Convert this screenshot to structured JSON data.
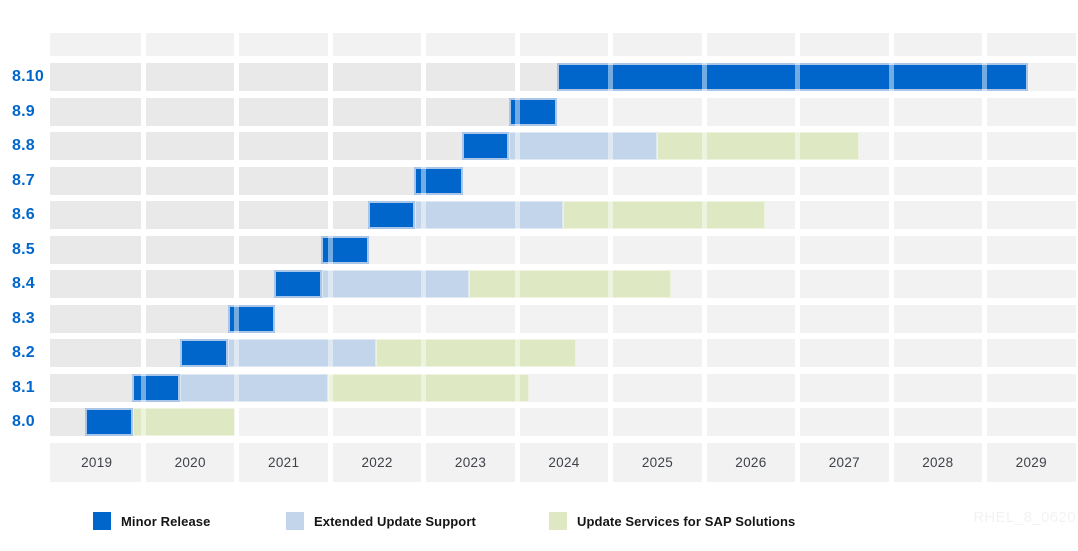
{
  "watermark": "RHEL_8_0620",
  "colors": {
    "minor_release": "#0066cc",
    "minor_release_border": "#a9c6e8",
    "extended_update_support": "#c3d5ea",
    "update_services_sap": "#dee9c4",
    "row_past_bg": "#e9e9e9",
    "row_future_bg": "#f2f2f2",
    "band_bg": "#f2f2f2",
    "version_label": "#0066cc",
    "axis_label": "#3e4349",
    "legend_text": "#151515",
    "watermark": "#f2f3f3"
  },
  "legend": {
    "items": [
      {
        "label": "Minor Release",
        "color_key": "minor_release"
      },
      {
        "label": "Extended Update Support",
        "color_key": "extended_update_support"
      },
      {
        "label": "Update Services for SAP Solutions",
        "color_key": "update_services_sap"
      }
    ]
  },
  "chart_data": {
    "type": "gantt",
    "title": "",
    "xlabel": "",
    "ylabel": "",
    "x_domain": [
      2019,
      2030
    ],
    "x_ticks": [
      "2019",
      "2020",
      "2021",
      "2022",
      "2023",
      "2024",
      "2025",
      "2026",
      "2027",
      "2028",
      "2029"
    ],
    "grid": "white vertical gaps at year boundaries",
    "legend_position": "bottom",
    "series_types": {
      "minor": "Minor Release",
      "eus": "Extended Update Support",
      "sap": "Update Services for SAP Solutions"
    },
    "rows": [
      {
        "label": "8.10",
        "segments": [
          {
            "type": "minor",
            "start": 2024.42,
            "end": 2029.47
          }
        ]
      },
      {
        "label": "8.9",
        "segments": [
          {
            "type": "minor",
            "start": 2023.91,
            "end": 2024.42
          }
        ]
      },
      {
        "label": "8.8",
        "segments": [
          {
            "type": "minor",
            "start": 2023.41,
            "end": 2023.91
          },
          {
            "type": "eus",
            "start": 2023.91,
            "end": 2025.5
          },
          {
            "type": "sap",
            "start": 2025.5,
            "end": 2027.66
          }
        ]
      },
      {
        "label": "8.7",
        "segments": [
          {
            "type": "minor",
            "start": 2022.9,
            "end": 2023.42
          }
        ]
      },
      {
        "label": "8.6",
        "segments": [
          {
            "type": "minor",
            "start": 2022.4,
            "end": 2022.91
          },
          {
            "type": "eus",
            "start": 2022.91,
            "end": 2024.49
          },
          {
            "type": "sap",
            "start": 2024.49,
            "end": 2026.65
          }
        ]
      },
      {
        "label": "8.5",
        "segments": [
          {
            "type": "minor",
            "start": 2021.9,
            "end": 2022.41
          }
        ]
      },
      {
        "label": "8.4",
        "segments": [
          {
            "type": "minor",
            "start": 2021.4,
            "end": 2021.91
          },
          {
            "type": "eus",
            "start": 2021.91,
            "end": 2023.48
          },
          {
            "type": "sap",
            "start": 2023.48,
            "end": 2025.64
          }
        ]
      },
      {
        "label": "8.3",
        "segments": [
          {
            "type": "minor",
            "start": 2020.9,
            "end": 2021.41
          }
        ]
      },
      {
        "label": "8.2",
        "segments": [
          {
            "type": "minor",
            "start": 2020.39,
            "end": 2020.9
          },
          {
            "type": "eus",
            "start": 2020.9,
            "end": 2022.49
          },
          {
            "type": "sap",
            "start": 2022.49,
            "end": 2024.63
          }
        ]
      },
      {
        "label": "8.1",
        "segments": [
          {
            "type": "minor",
            "start": 2019.88,
            "end": 2020.39
          },
          {
            "type": "eus",
            "start": 2020.39,
            "end": 2021.98
          },
          {
            "type": "sap",
            "start": 2021.98,
            "end": 2024.13
          }
        ]
      },
      {
        "label": "8.0",
        "segments": [
          {
            "type": "minor",
            "start": 2019.37,
            "end": 2019.89
          },
          {
            "type": "sap",
            "start": 2019.89,
            "end": 2020.98
          }
        ]
      }
    ]
  }
}
